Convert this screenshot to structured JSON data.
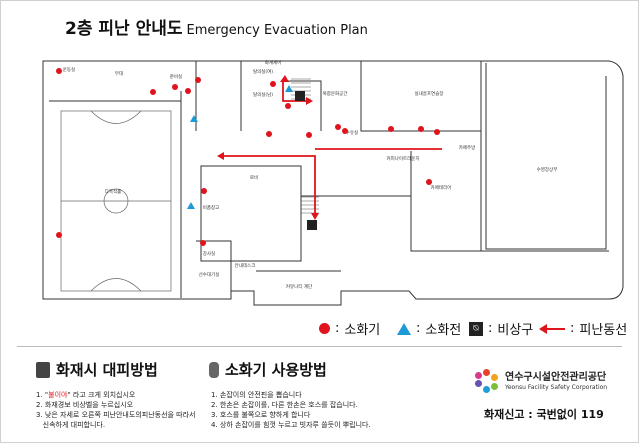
{
  "title": {
    "korean": "2층 피난 안내도",
    "english": "Emergency Evacuation Plan"
  },
  "rooms": [
    "운동실",
    "무대",
    "준비실",
    "탈의실(여)",
    "화계제어",
    "탈의실(남)",
    "복합문화공간",
    "실내골프연습장",
    "다목적홀",
    "수유실",
    "커피나이트라운지",
    "카페주방",
    "로비",
    "비품창고",
    "카페테리어",
    "수영장상부",
    "강사실",
    "선수대기실",
    "안내데스크",
    "커뮤니티 계단"
  ],
  "legend": {
    "extinguisher": "소화기",
    "hydrant": "소화전",
    "stair": "비상구",
    "route": "피난동선",
    "colon": ":"
  },
  "colors": {
    "extinguisher": "#e0141c",
    "hydrant": "#1d9ad6",
    "route": "#e0141c"
  },
  "fire": {
    "heading": "화재시 대피방법",
    "steps": [
      {
        "num": "1.",
        "pre": "\"",
        "highlight": "불이야",
        "post": "\" 라고 크게 외치십시오"
      },
      {
        "num": "2.",
        "pre": "화재경보 비상벨을 누르십시오",
        "highlight": "",
        "post": ""
      },
      {
        "num": "3.",
        "pre": "낮은 자세로 오른쪽 피난안내도의피난동선을 따라서\n   신속하게 대피합니다.",
        "highlight": "",
        "post": ""
      }
    ]
  },
  "extinguisher_use": {
    "heading": "소화기 사용방법",
    "steps": [
      "1. 손잡이의 안전핀을 뽑습니다",
      "2. 한손은 손잡이를, 다른 한손은 호스를 잡습니다.",
      "3. 호스를 불쪽으로 향하게 합니다",
      "4. 상하 손잡이를 힘껏 누르고 빗자루 쓸듯이 뿌립니다."
    ]
  },
  "org": {
    "name": "연수구시설안전관리공단",
    "english": "Yeonsu Facility Safety Corporation"
  },
  "report": "화재신고 : 국번없이 119"
}
